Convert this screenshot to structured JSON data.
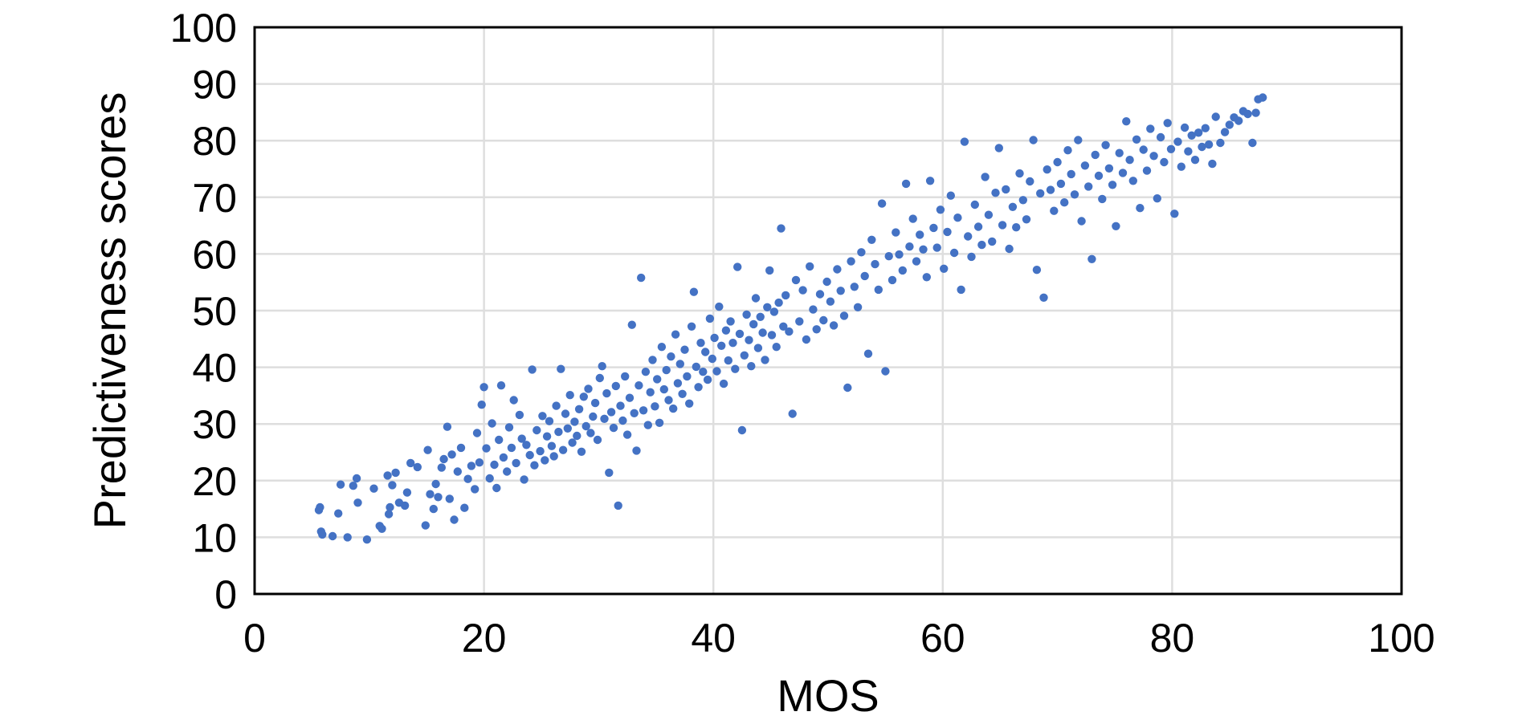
{
  "chart_data": {
    "type": "scatter",
    "title": "",
    "xlabel": "MOS",
    "ylabel": "Predictiveness scores",
    "xlim": [
      0,
      100
    ],
    "ylim": [
      0,
      100
    ],
    "xticks": [
      "0",
      "20",
      "40",
      "60",
      "80",
      "100"
    ],
    "yticks": [
      "0",
      "10",
      "20",
      "30",
      "40",
      "50",
      "60",
      "70",
      "80",
      "90",
      "100"
    ],
    "grid": true,
    "legend": "none",
    "marker_color": "#4472C4",
    "series": [
      {
        "points": [
          [
            5.6,
            14.8
          ],
          [
            5.7,
            15.3
          ],
          [
            5.8,
            11.0
          ],
          [
            5.9,
            10.5
          ],
          [
            6.8,
            10.2
          ],
          [
            7.3,
            14.2
          ],
          [
            7.5,
            19.3
          ],
          [
            8.1,
            10.0
          ],
          [
            8.6,
            19.1
          ],
          [
            8.9,
            20.4
          ],
          [
            9.0,
            16.1
          ],
          [
            9.8,
            9.6
          ],
          [
            10.4,
            18.6
          ],
          [
            10.9,
            12.0
          ],
          [
            11.1,
            11.5
          ],
          [
            11.6,
            20.9
          ],
          [
            11.7,
            14.1
          ],
          [
            11.8,
            15.3
          ],
          [
            12.0,
            19.2
          ],
          [
            12.3,
            21.4
          ],
          [
            12.6,
            16.1
          ],
          [
            13.1,
            15.6
          ],
          [
            13.3,
            17.9
          ],
          [
            13.6,
            23.1
          ],
          [
            14.2,
            22.4
          ],
          [
            14.9,
            12.1
          ],
          [
            15.1,
            25.4
          ],
          [
            15.3,
            17.6
          ],
          [
            15.6,
            15.0
          ],
          [
            15.8,
            19.4
          ],
          [
            16.0,
            17.1
          ],
          [
            16.3,
            22.3
          ],
          [
            16.5,
            23.8
          ],
          [
            16.8,
            29.5
          ],
          [
            17.0,
            16.8
          ],
          [
            17.2,
            24.6
          ],
          [
            17.4,
            13.1
          ],
          [
            17.7,
            21.6
          ],
          [
            18.0,
            25.8
          ],
          [
            18.3,
            15.2
          ],
          [
            18.6,
            20.3
          ],
          [
            18.9,
            22.6
          ],
          [
            19.2,
            18.5
          ],
          [
            19.4,
            28.4
          ],
          [
            19.6,
            23.2
          ],
          [
            19.8,
            33.4
          ],
          [
            20.0,
            36.5
          ],
          [
            20.2,
            25.7
          ],
          [
            20.5,
            20.4
          ],
          [
            20.7,
            30.1
          ],
          [
            20.9,
            22.8
          ],
          [
            21.1,
            18.7
          ],
          [
            21.3,
            27.2
          ],
          [
            21.5,
            36.8
          ],
          [
            21.7,
            24.1
          ],
          [
            22.0,
            21.6
          ],
          [
            22.2,
            29.4
          ],
          [
            22.4,
            25.8
          ],
          [
            22.6,
            34.2
          ],
          [
            22.8,
            23.1
          ],
          [
            23.1,
            31.6
          ],
          [
            23.3,
            27.4
          ],
          [
            23.5,
            20.2
          ],
          [
            23.7,
            26.3
          ],
          [
            24.0,
            24.5
          ],
          [
            24.2,
            39.6
          ],
          [
            24.4,
            22.7
          ],
          [
            24.6,
            28.9
          ],
          [
            24.9,
            25.2
          ],
          [
            25.1,
            31.4
          ],
          [
            25.3,
            23.6
          ],
          [
            25.5,
            27.8
          ],
          [
            25.7,
            30.5
          ],
          [
            25.9,
            26.1
          ],
          [
            26.1,
            24.3
          ],
          [
            26.3,
            33.2
          ],
          [
            26.5,
            28.6
          ],
          [
            26.7,
            39.7
          ],
          [
            26.9,
            25.4
          ],
          [
            27.1,
            31.8
          ],
          [
            27.3,
            29.2
          ],
          [
            27.5,
            35.1
          ],
          [
            27.7,
            26.7
          ],
          [
            27.9,
            30.4
          ],
          [
            28.1,
            27.9
          ],
          [
            28.3,
            32.6
          ],
          [
            28.5,
            25.1
          ],
          [
            28.7,
            34.8
          ],
          [
            28.9,
            29.6
          ],
          [
            29.1,
            36.2
          ],
          [
            29.3,
            28.4
          ],
          [
            29.5,
            31.3
          ],
          [
            29.7,
            33.7
          ],
          [
            29.9,
            27.2
          ],
          [
            30.1,
            38.1
          ],
          [
            30.3,
            40.2
          ],
          [
            30.5,
            30.9
          ],
          [
            30.7,
            35.4
          ],
          [
            30.9,
            21.4
          ],
          [
            31.1,
            32.1
          ],
          [
            31.3,
            29.3
          ],
          [
            31.5,
            36.7
          ],
          [
            31.7,
            15.6
          ],
          [
            31.9,
            33.2
          ],
          [
            32.1,
            30.6
          ],
          [
            32.3,
            38.4
          ],
          [
            32.5,
            28.1
          ],
          [
            32.7,
            34.6
          ],
          [
            32.9,
            47.5
          ],
          [
            33.1,
            31.9
          ],
          [
            33.3,
            25.3
          ],
          [
            33.5,
            36.8
          ],
          [
            33.7,
            55.8
          ],
          [
            33.9,
            32.4
          ],
          [
            34.1,
            39.2
          ],
          [
            34.3,
            29.8
          ],
          [
            34.5,
            35.6
          ],
          [
            34.7,
            41.3
          ],
          [
            34.9,
            33.1
          ],
          [
            35.1,
            37.9
          ],
          [
            35.3,
            30.2
          ],
          [
            35.5,
            43.6
          ],
          [
            35.7,
            36.1
          ],
          [
            35.9,
            39.5
          ],
          [
            36.1,
            34.2
          ],
          [
            36.3,
            41.9
          ],
          [
            36.5,
            32.7
          ],
          [
            36.7,
            45.8
          ],
          [
            36.9,
            37.2
          ],
          [
            37.1,
            40.6
          ],
          [
            37.3,
            35.3
          ],
          [
            37.5,
            43.1
          ],
          [
            37.7,
            38.4
          ],
          [
            37.9,
            33.6
          ],
          [
            38.1,
            47.2
          ],
          [
            38.3,
            53.3
          ],
          [
            38.5,
            40.1
          ],
          [
            38.7,
            36.5
          ],
          [
            38.9,
            44.3
          ],
          [
            39.1,
            39.2
          ],
          [
            39.3,
            42.7
          ],
          [
            39.5,
            37.8
          ],
          [
            39.7,
            48.6
          ],
          [
            39.9,
            41.5
          ],
          [
            40.1,
            45.2
          ],
          [
            40.3,
            39.3
          ],
          [
            40.5,
            50.7
          ],
          [
            40.7,
            43.8
          ],
          [
            40.9,
            37.1
          ],
          [
            41.1,
            46.5
          ],
          [
            41.3,
            41.2
          ],
          [
            41.5,
            48.1
          ],
          [
            41.7,
            44.3
          ],
          [
            41.9,
            39.7
          ],
          [
            42.1,
            57.7
          ],
          [
            42.3,
            45.9
          ],
          [
            42.5,
            28.9
          ],
          [
            42.7,
            42.1
          ],
          [
            42.9,
            49.3
          ],
          [
            43.1,
            44.8
          ],
          [
            43.3,
            40.2
          ],
          [
            43.5,
            47.6
          ],
          [
            43.7,
            52.2
          ],
          [
            43.9,
            43.4
          ],
          [
            44.1,
            48.9
          ],
          [
            44.3,
            46.1
          ],
          [
            44.5,
            41.3
          ],
          [
            44.7,
            50.6
          ],
          [
            44.9,
            57.1
          ],
          [
            45.1,
            45.7
          ],
          [
            45.3,
            49.8
          ],
          [
            45.5,
            43.6
          ],
          [
            45.7,
            51.4
          ],
          [
            45.9,
            64.5
          ],
          [
            46.1,
            47.2
          ],
          [
            46.3,
            52.7
          ],
          [
            46.6,
            46.3
          ],
          [
            46.9,
            31.8
          ],
          [
            47.2,
            55.4
          ],
          [
            47.5,
            48.1
          ],
          [
            47.8,
            53.6
          ],
          [
            48.1,
            44.9
          ],
          [
            48.4,
            57.8
          ],
          [
            48.7,
            50.2
          ],
          [
            49.0,
            46.7
          ],
          [
            49.3,
            52.9
          ],
          [
            49.6,
            48.3
          ],
          [
            49.9,
            55.1
          ],
          [
            50.2,
            51.6
          ],
          [
            50.5,
            47.4
          ],
          [
            50.8,
            57.3
          ],
          [
            51.1,
            53.5
          ],
          [
            51.4,
            49.1
          ],
          [
            51.7,
            36.4
          ],
          [
            52.0,
            58.7
          ],
          [
            52.3,
            54.2
          ],
          [
            52.6,
            50.6
          ],
          [
            52.9,
            60.3
          ],
          [
            53.2,
            56.1
          ],
          [
            53.5,
            42.4
          ],
          [
            53.8,
            62.5
          ],
          [
            54.1,
            58.2
          ],
          [
            54.4,
            53.7
          ],
          [
            54.7,
            68.9
          ],
          [
            55.0,
            39.3
          ],
          [
            55.3,
            59.6
          ],
          [
            55.6,
            55.4
          ],
          [
            55.9,
            63.8
          ],
          [
            56.2,
            59.9
          ],
          [
            56.5,
            57.1
          ],
          [
            56.8,
            72.4
          ],
          [
            57.1,
            61.3
          ],
          [
            57.4,
            66.2
          ],
          [
            57.7,
            58.7
          ],
          [
            58.0,
            63.4
          ],
          [
            58.3,
            60.8
          ],
          [
            58.6,
            55.9
          ],
          [
            58.9,
            72.9
          ],
          [
            59.2,
            64.6
          ],
          [
            59.5,
            61.1
          ],
          [
            59.8,
            67.8
          ],
          [
            60.1,
            57.4
          ],
          [
            60.4,
            63.9
          ],
          [
            60.7,
            70.3
          ],
          [
            61.0,
            60.2
          ],
          [
            61.3,
            66.4
          ],
          [
            61.6,
            53.7
          ],
          [
            61.9,
            79.8
          ],
          [
            62.2,
            63.1
          ],
          [
            62.5,
            59.5
          ],
          [
            62.8,
            68.7
          ],
          [
            63.1,
            64.8
          ],
          [
            63.4,
            61.6
          ],
          [
            63.7,
            73.6
          ],
          [
            64.0,
            66.9
          ],
          [
            64.3,
            62.2
          ],
          [
            64.6,
            70.8
          ],
          [
            64.9,
            78.7
          ],
          [
            65.2,
            65.1
          ],
          [
            65.5,
            71.4
          ],
          [
            65.8,
            60.9
          ],
          [
            66.1,
            68.3
          ],
          [
            66.4,
            64.7
          ],
          [
            66.7,
            74.2
          ],
          [
            67.0,
            69.5
          ],
          [
            67.3,
            66.1
          ],
          [
            67.6,
            72.8
          ],
          [
            67.9,
            80.1
          ],
          [
            68.2,
            57.2
          ],
          [
            68.5,
            70.7
          ],
          [
            68.8,
            52.3
          ],
          [
            69.1,
            74.9
          ],
          [
            69.4,
            71.3
          ],
          [
            69.7,
            67.6
          ],
          [
            70.0,
            76.2
          ],
          [
            70.3,
            72.4
          ],
          [
            70.6,
            69.1
          ],
          [
            70.9,
            78.3
          ],
          [
            71.2,
            74.1
          ],
          [
            71.5,
            70.5
          ],
          [
            71.8,
            80.1
          ],
          [
            72.1,
            65.8
          ],
          [
            72.4,
            75.6
          ],
          [
            72.7,
            71.9
          ],
          [
            73.0,
            59.1
          ],
          [
            73.3,
            77.5
          ],
          [
            73.6,
            73.8
          ],
          [
            73.9,
            69.7
          ],
          [
            74.2,
            79.2
          ],
          [
            74.5,
            75.1
          ],
          [
            74.8,
            72.2
          ],
          [
            75.1,
            64.9
          ],
          [
            75.4,
            77.8
          ],
          [
            75.7,
            74.3
          ],
          [
            76.0,
            83.4
          ],
          [
            76.3,
            76.6
          ],
          [
            76.6,
            72.9
          ],
          [
            76.9,
            80.2
          ],
          [
            77.2,
            68.1
          ],
          [
            77.5,
            78.4
          ],
          [
            77.8,
            74.7
          ],
          [
            78.1,
            82.1
          ],
          [
            78.4,
            77.3
          ],
          [
            78.7,
            69.8
          ],
          [
            79.0,
            80.6
          ],
          [
            79.3,
            76.2
          ],
          [
            79.6,
            83.1
          ],
          [
            79.9,
            78.5
          ],
          [
            80.2,
            67.1
          ],
          [
            80.5,
            79.8
          ],
          [
            80.8,
            75.4
          ],
          [
            81.1,
            82.3
          ],
          [
            81.4,
            78.1
          ],
          [
            81.7,
            80.9
          ],
          [
            82.0,
            76.6
          ],
          [
            82.3,
            81.4
          ],
          [
            82.6,
            78.9
          ],
          [
            82.9,
            82.2
          ],
          [
            83.2,
            79.3
          ],
          [
            83.5,
            75.9
          ],
          [
            83.8,
            84.2
          ],
          [
            84.2,
            79.6
          ],
          [
            84.6,
            81.5
          ],
          [
            85.0,
            82.8
          ],
          [
            85.4,
            84.1
          ],
          [
            85.8,
            83.5
          ],
          [
            86.2,
            85.2
          ],
          [
            86.6,
            84.7
          ],
          [
            87.0,
            79.6
          ],
          [
            87.3,
            84.9
          ],
          [
            87.5,
            87.3
          ],
          [
            87.9,
            87.6
          ]
        ]
      }
    ]
  }
}
